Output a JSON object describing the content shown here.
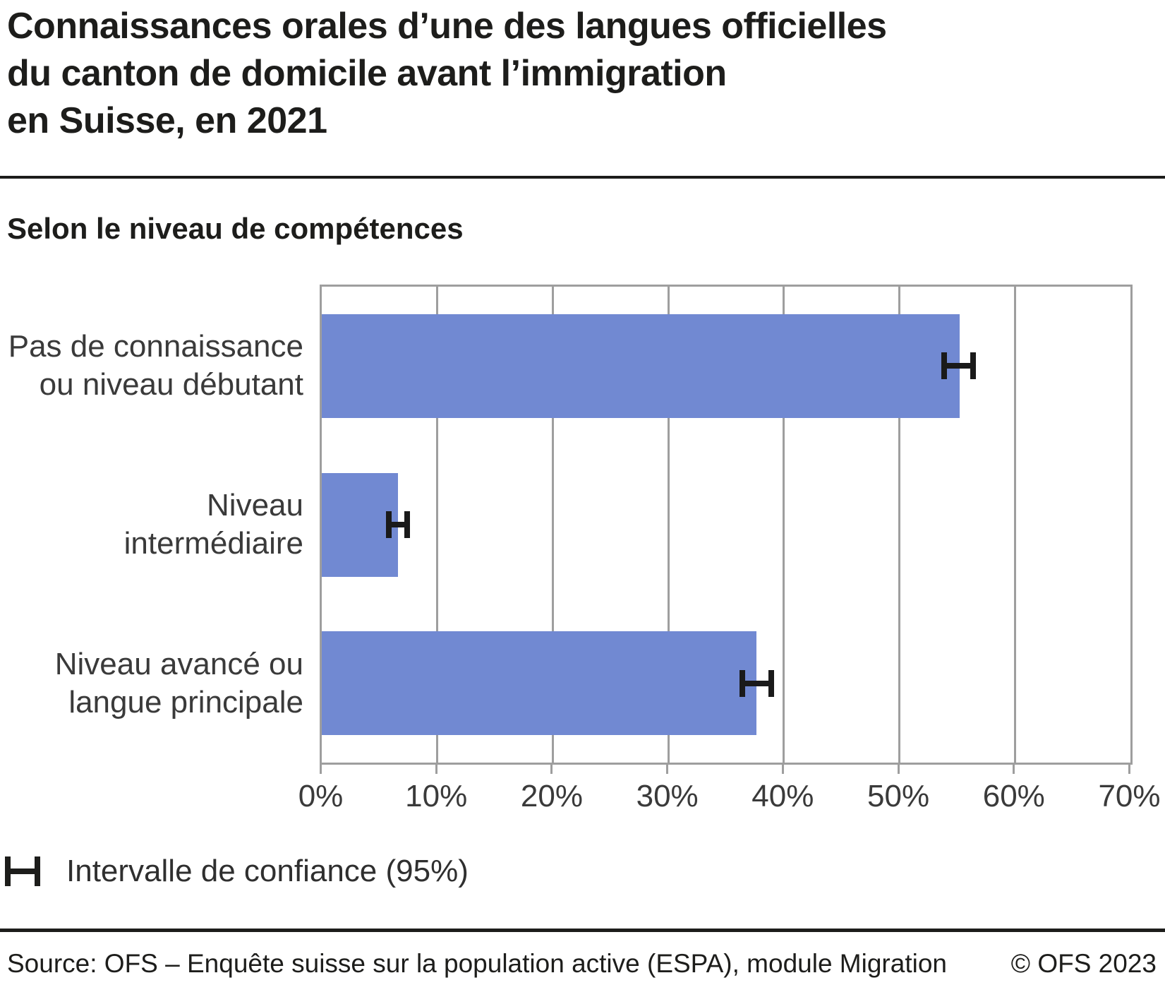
{
  "title": "Connaissances orales d’une des langues officielles\ndu canton de domicile avant l’immigration\nen Suisse, en 2021",
  "subtitle": "Selon le niveau de compétences",
  "chart_data": {
    "type": "bar",
    "orientation": "horizontal",
    "title": "Connaissances orales d’une des langues officielles du canton de domicile avant l’immigration en Suisse, en 2021",
    "subtitle": "Selon le niveau de compétences",
    "categories": [
      "Pas de connaissance\nou niveau débutant",
      "Niveau\nintermédiaire",
      "Niveau avancé ou\nlangue principale"
    ],
    "values": [
      55.2,
      6.6,
      37.6
    ],
    "confidence_intervals_95": [
      [
        53.9,
        56.4
      ],
      [
        5.8,
        7.4
      ],
      [
        36.4,
        38.9
      ]
    ],
    "unit": "%",
    "xlim": [
      0,
      70
    ],
    "tick_step": 10,
    "tick_labels": [
      "0%",
      "10%",
      "20%",
      "30%",
      "40%",
      "50%",
      "60%",
      "70%"
    ],
    "grid": true,
    "legend_position": "bottom-left",
    "colors": {
      "bar": "#7189d2",
      "error_bar": "#1a1a1a",
      "grid": "#9e9e9e"
    }
  },
  "legend": {
    "error_bar_label": "Intervalle de confiance (95%)"
  },
  "footer": {
    "source": "Source: OFS – Enquête suisse sur la population active (ESPA), module Migration",
    "copyright": "© OFS 2023"
  }
}
